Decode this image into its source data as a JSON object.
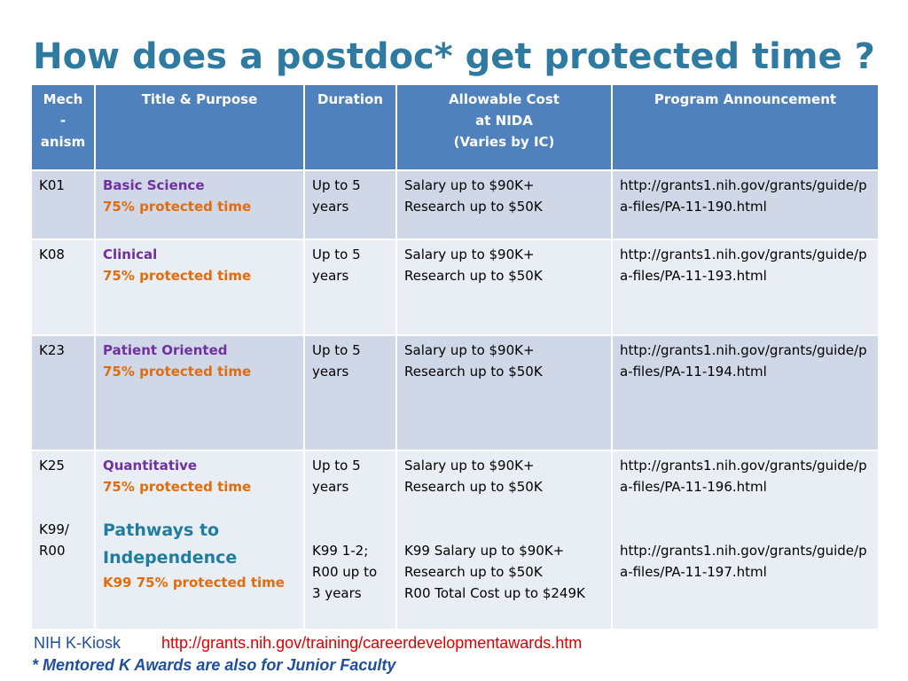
{
  "title": "How does a postdoc* get protected time ?",
  "table": {
    "headers": {
      "mechanism": [
        "Mech",
        "-",
        "anism"
      ],
      "title_purpose": "Title & Purpose",
      "duration": "Duration",
      "cost": [
        "Allowable Cost",
        "at NIDA",
        "(Varies by  IC)"
      ],
      "announcement": "Program Announcement"
    },
    "rows": [
      {
        "mech": "K01",
        "name": "Basic Science",
        "protected": "75% protected time",
        "duration": [
          "Up to 5",
          "years"
        ],
        "cost": [
          "Salary up to $90K+",
          "Research up to $50K"
        ],
        "url": "http://grants1.nih.gov/grants/guide/pa-files/PA-11-190.html"
      },
      {
        "mech": "K08",
        "name": "Clinical",
        "protected": "75% protected time",
        "duration": [
          "Up to 5",
          "years"
        ],
        "cost": [
          "Salary up to $90K+",
          "Research up to $50K"
        ],
        "url": "http://grants1.nih.gov/grants/guide/pa-files/PA-11-193.html"
      },
      {
        "mech": "K23",
        "name": "Patient Oriented",
        "protected": "75% protected time",
        "duration": [
          "Up to 5",
          "years"
        ],
        "cost": [
          "Salary up to $90K+",
          "Research up to $50K"
        ],
        "url": "http://grants1.nih.gov/grants/guide/pa-files/PA-11-194.html"
      },
      {
        "mech": "K25",
        "mech2": [
          "K99/",
          "R00"
        ],
        "name": "Quantitative",
        "protected": "75% protected time",
        "pathways": [
          "Pathways to",
          "Independence"
        ],
        "pathways_protected": "K99 75% protected time",
        "duration": [
          "Up to 5",
          "years"
        ],
        "duration2": [
          "K99 1-2;",
          "R00 up to",
          "3 years"
        ],
        "cost": [
          "Salary up to $90K+",
          "Research up to $50K"
        ],
        "cost2": [
          "K99 Salary up to $90K+",
          "Research up to $50K",
          "R00 Total Cost up to $249K"
        ],
        "url": "http://grants1.nih.gov/grants/guide/pa-files/PA-11-196.html",
        "url2": "http://grants1.nih.gov/grants/guide/pa-files/PA-11-197.html"
      }
    ]
  },
  "footer": {
    "kiosk_label": "NIH K-Kiosk",
    "kiosk_url": "http://grants.nih.gov/training/careerdevelopmentawards.htm",
    "note": "* Mentored K Awards are also for Junior Faculty"
  },
  "colors": {
    "title": "#2E7AA0",
    "header_bg": "#4F81BD",
    "row_dark": "#D0D8E8",
    "row_light": "#E9EDF4",
    "program_name": "#7030A0",
    "protected_time": "#E36C09",
    "pathways": "#1F7D9F",
    "kiosk_url": "#E00000",
    "footer_blue": "#1F4E9F"
  }
}
